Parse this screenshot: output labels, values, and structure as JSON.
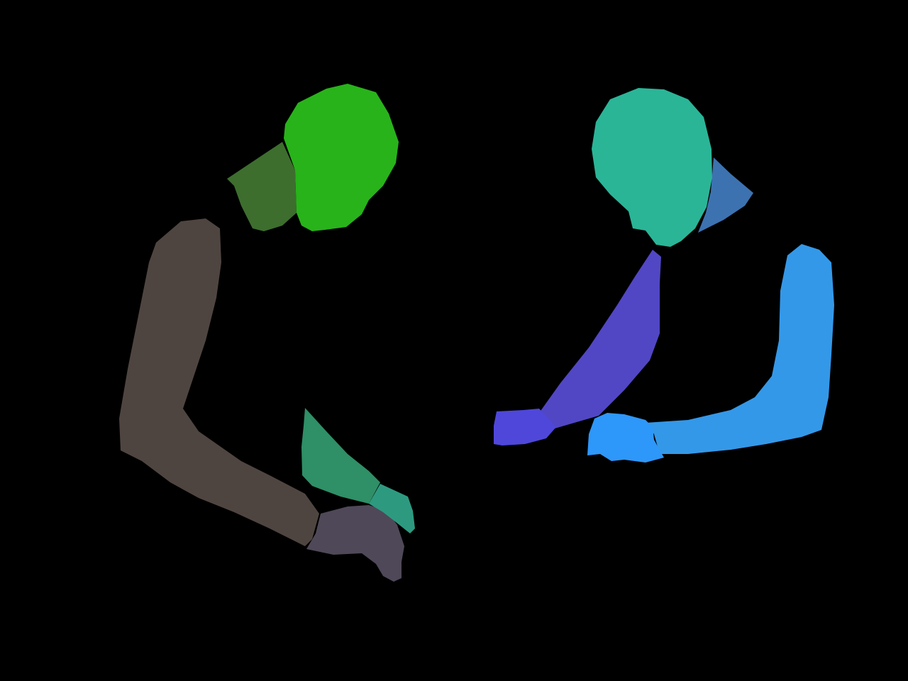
{
  "scene": {
    "background": "#000000",
    "figures": [
      {
        "id": "person-left",
        "parts": [
          {
            "name": "left-person-head",
            "color": "#28b31a"
          },
          {
            "name": "left-person-neck",
            "color": "#3d6e2e"
          },
          {
            "name": "left-person-upper-arm",
            "color": "#4f4540"
          },
          {
            "name": "left-person-hand",
            "color": "#4f4858"
          },
          {
            "name": "left-person-forearm",
            "color": "#2f8f66"
          },
          {
            "name": "left-person-wrist-hand",
            "color": "#2d9a80"
          }
        ]
      },
      {
        "id": "person-right",
        "parts": [
          {
            "name": "right-person-head",
            "color": "#2ab597"
          },
          {
            "name": "right-person-hair",
            "color": "#3d72b0"
          },
          {
            "name": "right-person-left-arm",
            "color": "#5147c4"
          },
          {
            "name": "right-person-left-hand",
            "color": "#4f47d9"
          },
          {
            "name": "right-person-right-arm",
            "color": "#3498e8"
          },
          {
            "name": "right-person-right-hand",
            "color": "#2e97fa"
          }
        ]
      }
    ]
  }
}
